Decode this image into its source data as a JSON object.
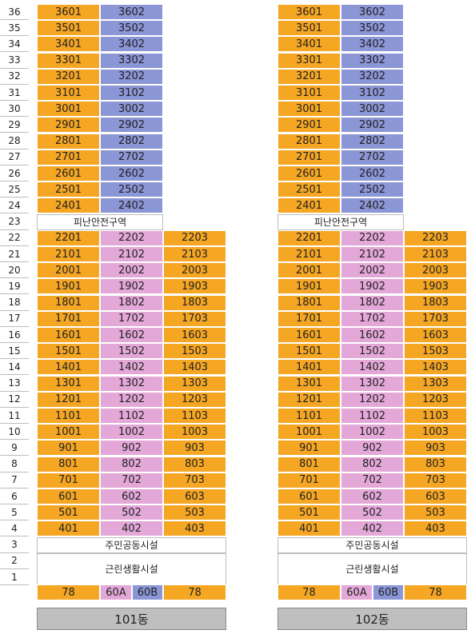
{
  "floor_labels": [
    "36",
    "35",
    "34",
    "33",
    "32",
    "31",
    "30",
    "29",
    "28",
    "27",
    "26",
    "25",
    "24",
    "23",
    "22",
    "21",
    "20",
    "19",
    "18",
    "17",
    "16",
    "15",
    "14",
    "13",
    "12",
    "11",
    "10",
    "9",
    "8",
    "7",
    "6",
    "5",
    "4",
    "3",
    "2",
    "1"
  ],
  "refuge_label": "피난안전구역",
  "community_label": "주민공동시설",
  "neighborhood_label": "근린생활시설",
  "ground_units": [
    "78",
    "60A",
    "60B",
    "78"
  ],
  "buildings": [
    {
      "name": "101동"
    },
    {
      "name": "102동"
    }
  ],
  "colors": {
    "orange": "#f5a623",
    "blue": "#8b96d6",
    "pink": "#e4a8d8"
  }
}
